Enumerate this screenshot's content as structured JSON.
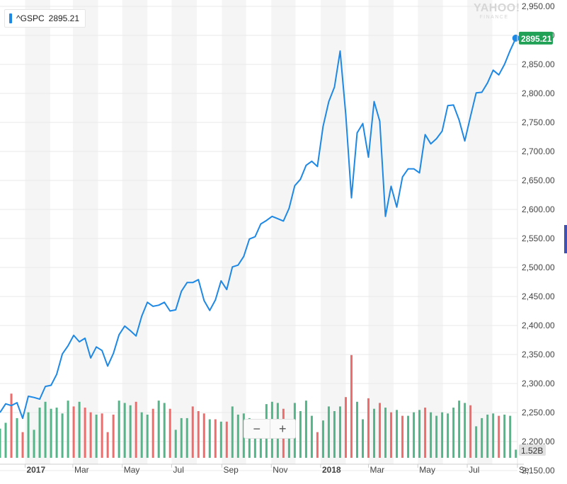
{
  "legend": {
    "symbol": "^GSPC",
    "value": "2895.21"
  },
  "logo": {
    "line1": "YAHOO!",
    "line2": "FINANCE"
  },
  "zoom": {
    "minus": "−",
    "plus": "+"
  },
  "colors": {
    "line": "#1e88e5",
    "up": "#52b788",
    "down": "#f26b6b",
    "last_badge": "#21a156",
    "vol_badge": "#e0e0e0"
  },
  "chart_data": {
    "type": "line",
    "series": [
      {
        "name": "^GSPC",
        "x_start": "2016-12-01",
        "x_step_days": 7,
        "values": [
          2250,
          2265,
          2262,
          2267,
          2240,
          2278,
          2276,
          2273,
          2295,
          2297,
          2316,
          2351,
          2365,
          2383,
          2372,
          2378,
          2344,
          2363,
          2357,
          2330,
          2352,
          2384,
          2399,
          2391,
          2382,
          2416,
          2440,
          2433,
          2435,
          2440,
          2425,
          2427,
          2459,
          2474,
          2474,
          2479,
          2443,
          2426,
          2444,
          2477,
          2462,
          2501,
          2504,
          2519,
          2549,
          2553,
          2575,
          2581,
          2588,
          2584,
          2580,
          2602,
          2641,
          2652,
          2676,
          2683,
          2674,
          2743,
          2786,
          2811,
          2873,
          2763,
          2620,
          2732,
          2748,
          2690,
          2786,
          2752,
          2588,
          2640,
          2604,
          2656,
          2670,
          2670,
          2663,
          2729,
          2713,
          2722,
          2735,
          2779,
          2780,
          2754,
          2718,
          2760,
          2801,
          2802,
          2818,
          2840,
          2832,
          2850,
          2874,
          2895.21
        ]
      }
    ],
    "volume": {
      "unit": "B",
      "bars": [
        {
          "up": true,
          "pct": 0.25
        },
        {
          "up": true,
          "pct": 0.3
        },
        {
          "up": false,
          "pct": 0.55
        },
        {
          "up": true,
          "pct": 0.34
        },
        {
          "up": false,
          "pct": 0.22
        },
        {
          "up": true,
          "pct": 0.39
        },
        {
          "up": true,
          "pct": 0.24
        },
        {
          "up": true,
          "pct": 0.43
        },
        {
          "up": true,
          "pct": 0.48
        },
        {
          "up": true,
          "pct": 0.42
        },
        {
          "up": true,
          "pct": 0.43
        },
        {
          "up": true,
          "pct": 0.38
        },
        {
          "up": true,
          "pct": 0.49
        },
        {
          "up": false,
          "pct": 0.44
        },
        {
          "up": true,
          "pct": 0.48
        },
        {
          "up": false,
          "pct": 0.43
        },
        {
          "up": false,
          "pct": 0.39
        },
        {
          "up": true,
          "pct": 0.37
        },
        {
          "up": false,
          "pct": 0.38
        },
        {
          "up": false,
          "pct": 0.22
        },
        {
          "up": false,
          "pct": 0.37
        },
        {
          "up": true,
          "pct": 0.49
        },
        {
          "up": true,
          "pct": 0.47
        },
        {
          "up": true,
          "pct": 0.45
        },
        {
          "up": false,
          "pct": 0.48
        },
        {
          "up": true,
          "pct": 0.39
        },
        {
          "up": true,
          "pct": 0.37
        },
        {
          "up": false,
          "pct": 0.42
        },
        {
          "up": true,
          "pct": 0.49
        },
        {
          "up": true,
          "pct": 0.47
        },
        {
          "up": false,
          "pct": 0.42
        },
        {
          "up": true,
          "pct": 0.24
        },
        {
          "up": true,
          "pct": 0.34
        },
        {
          "up": true,
          "pct": 0.34
        },
        {
          "up": false,
          "pct": 0.44
        },
        {
          "up": false,
          "pct": 0.4
        },
        {
          "up": false,
          "pct": 0.38
        },
        {
          "up": true,
          "pct": 0.33
        },
        {
          "up": false,
          "pct": 0.33
        },
        {
          "up": true,
          "pct": 0.31
        },
        {
          "up": false,
          "pct": 0.31
        },
        {
          "up": true,
          "pct": 0.44
        },
        {
          "up": true,
          "pct": 0.37
        },
        {
          "up": true,
          "pct": 0.38
        },
        {
          "up": true,
          "pct": 0.34
        },
        {
          "up": true,
          "pct": 0.32
        },
        {
          "up": true,
          "pct": 0.33
        },
        {
          "up": true,
          "pct": 0.46
        },
        {
          "up": true,
          "pct": 0.48
        },
        {
          "up": true,
          "pct": 0.47
        },
        {
          "up": false,
          "pct": 0.42
        },
        {
          "up": true,
          "pct": 0.29
        },
        {
          "up": true,
          "pct": 0.47
        },
        {
          "up": true,
          "pct": 0.4
        },
        {
          "up": true,
          "pct": 0.49
        },
        {
          "up": true,
          "pct": 0.36
        },
        {
          "up": false,
          "pct": 0.22
        },
        {
          "up": true,
          "pct": 0.32
        },
        {
          "up": true,
          "pct": 0.44
        },
        {
          "up": true,
          "pct": 0.4
        },
        {
          "up": true,
          "pct": 0.44
        },
        {
          "up": false,
          "pct": 0.52
        },
        {
          "up": false,
          "pct": 0.88
        },
        {
          "up": true,
          "pct": 0.48
        },
        {
          "up": true,
          "pct": 0.33
        },
        {
          "up": false,
          "pct": 0.51
        },
        {
          "up": true,
          "pct": 0.42
        },
        {
          "up": false,
          "pct": 0.47
        },
        {
          "up": true,
          "pct": 0.43
        },
        {
          "up": false,
          "pct": 0.39
        },
        {
          "up": true,
          "pct": 0.41
        },
        {
          "up": false,
          "pct": 0.36
        },
        {
          "up": true,
          "pct": 0.36
        },
        {
          "up": true,
          "pct": 0.39
        },
        {
          "up": true,
          "pct": 0.41
        },
        {
          "up": false,
          "pct": 0.43
        },
        {
          "up": true,
          "pct": 0.39
        },
        {
          "up": true,
          "pct": 0.36
        },
        {
          "up": true,
          "pct": 0.39
        },
        {
          "up": true,
          "pct": 0.38
        },
        {
          "up": true,
          "pct": 0.43
        },
        {
          "up": true,
          "pct": 0.49
        },
        {
          "up": true,
          "pct": 0.47
        },
        {
          "up": false,
          "pct": 0.45
        },
        {
          "up": true,
          "pct": 0.27
        },
        {
          "up": true,
          "pct": 0.34
        },
        {
          "up": true,
          "pct": 0.37
        },
        {
          "up": true,
          "pct": 0.38
        },
        {
          "up": false,
          "pct": 0.36
        },
        {
          "up": true,
          "pct": 0.37
        },
        {
          "up": true,
          "pct": 0.36
        },
        {
          "up": true,
          "pct": 0.07
        }
      ],
      "last_label": "1.52B"
    },
    "y_ticks": [
      2950,
      2900,
      2850,
      2800,
      2750,
      2700,
      2650,
      2600,
      2550,
      2500,
      2450,
      2400,
      2350,
      2300,
      2250,
      2200,
      2150
    ],
    "y_tick_labels": [
      "2,950.00",
      "2,900.00",
      "2,850.00",
      "2,800.00",
      "2,750.00",
      "2,700.00",
      "2,650.00",
      "2,600.00",
      "2,550.00",
      "2,500.00",
      "2,450.00",
      "2,400.00",
      "2,350.00",
      "2,300.00",
      "2,250.00",
      "2,200.00",
      "2,150.00"
    ],
    "x_ticks": [
      {
        "label": "2017",
        "date": "2017-01-01",
        "bold": true
      },
      {
        "label": "Mar",
        "date": "2017-03-01",
        "bold": false
      },
      {
        "label": "May",
        "date": "2017-05-01",
        "bold": false
      },
      {
        "label": "Jul",
        "date": "2017-07-01",
        "bold": false
      },
      {
        "label": "Sep",
        "date": "2017-09-01",
        "bold": false
      },
      {
        "label": "Nov",
        "date": "2017-11-01",
        "bold": false
      },
      {
        "label": "2018",
        "date": "2018-01-01",
        "bold": true
      },
      {
        "label": "Mar",
        "date": "2018-03-01",
        "bold": false
      },
      {
        "label": "May",
        "date": "2018-05-01",
        "bold": false
      },
      {
        "label": "Jul",
        "date": "2018-07-01",
        "bold": false
      },
      {
        "label": "Se",
        "date": "2018-09-01",
        "bold": false
      }
    ],
    "ylim": [
      2150,
      2950
    ],
    "xlim": [
      "2016-12-01",
      "2018-09-01"
    ],
    "grid": true,
    "last_value_label": "2895.21",
    "title": "",
    "xlabel": "",
    "ylabel": ""
  }
}
